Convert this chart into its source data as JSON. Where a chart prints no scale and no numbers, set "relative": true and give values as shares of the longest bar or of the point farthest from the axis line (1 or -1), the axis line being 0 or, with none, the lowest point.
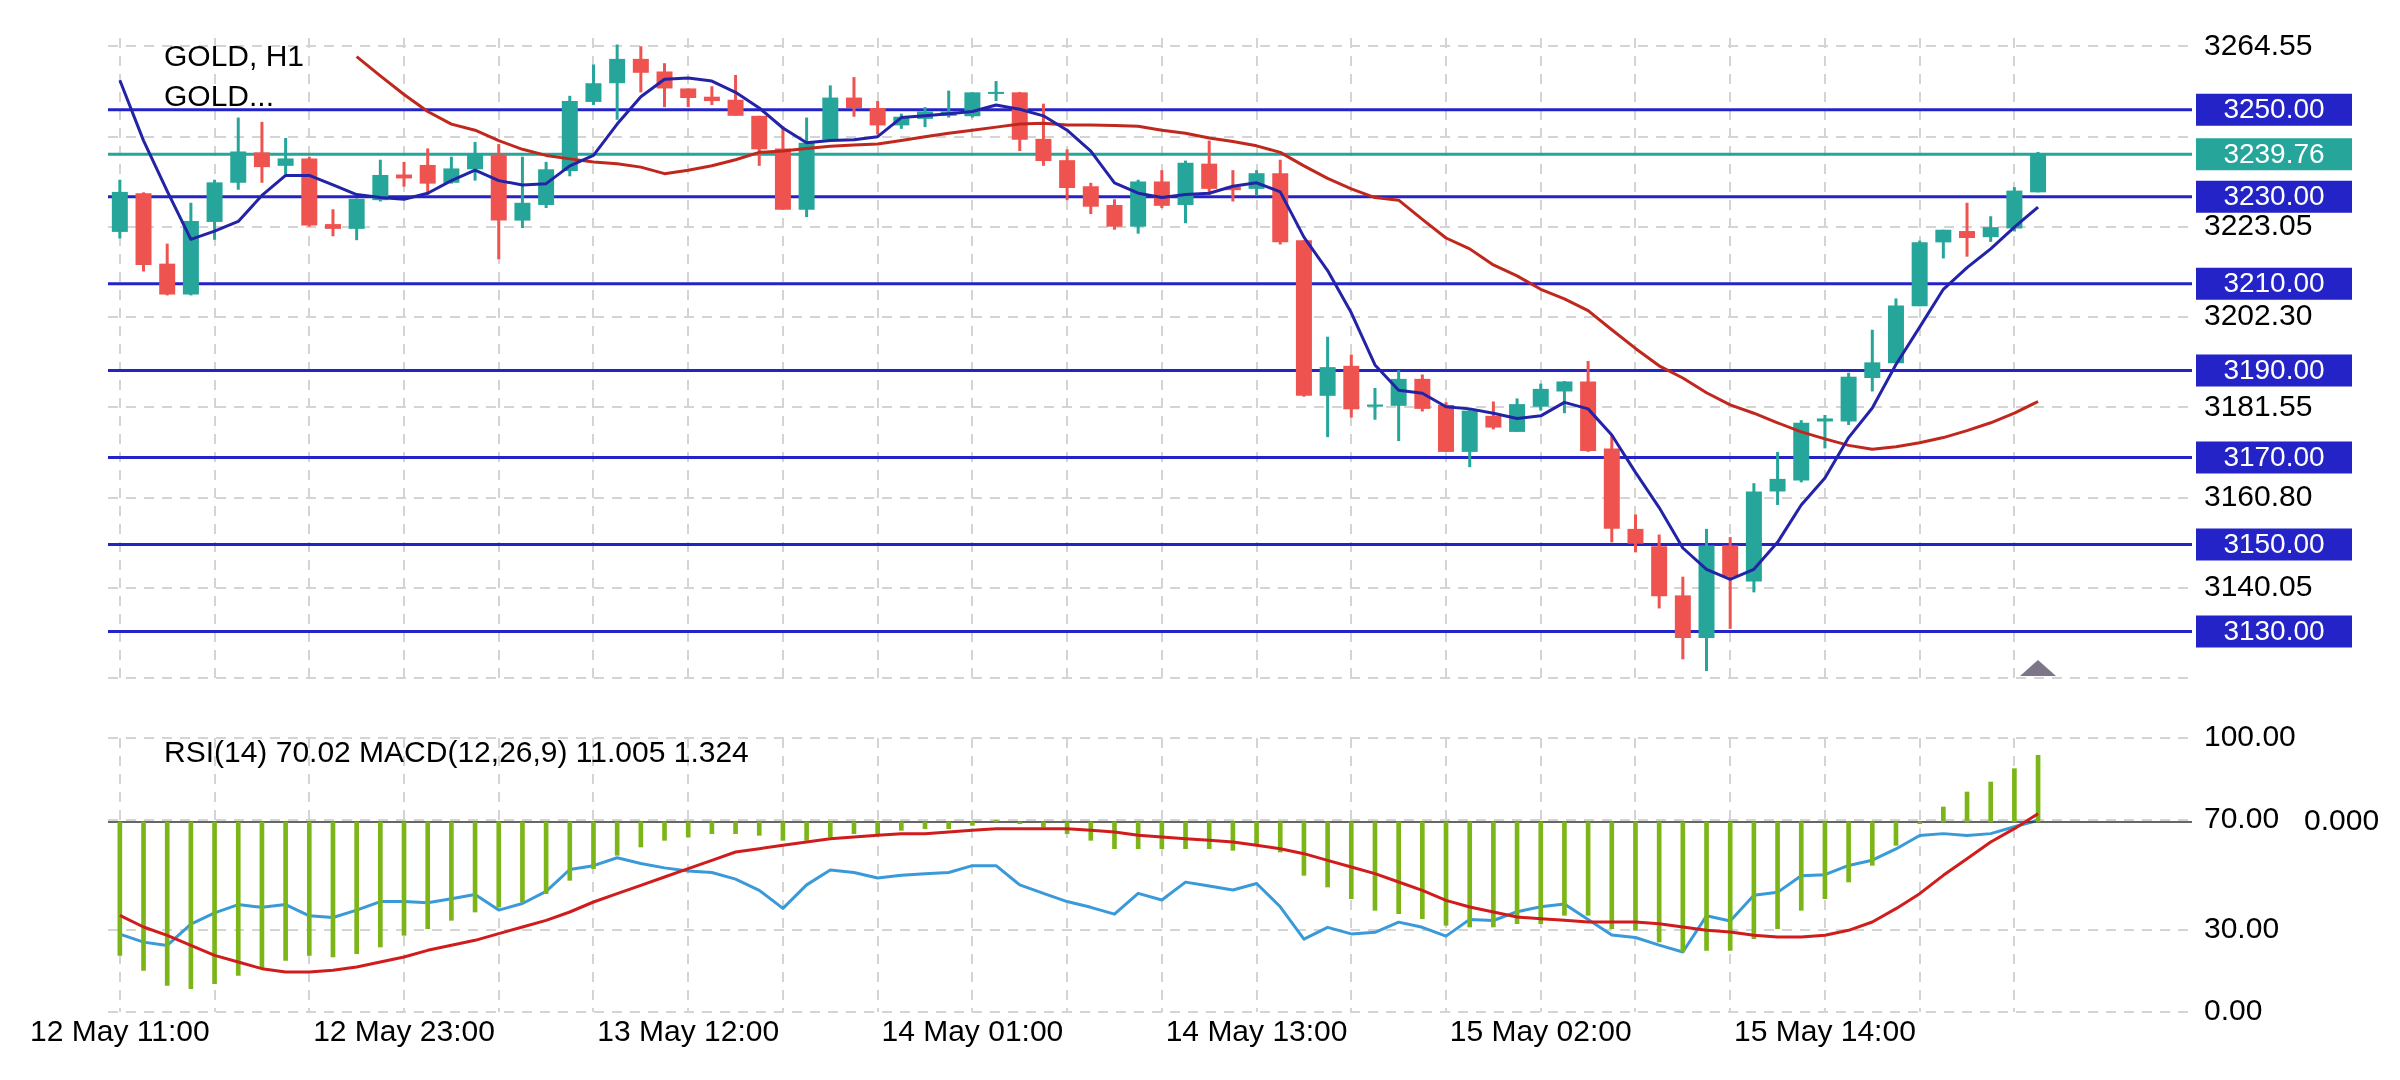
{
  "chart_data": [
    {
      "type": "candlestick",
      "title": "GOLD, H1",
      "subtitle": "GOLD...",
      "grid": true,
      "categories": [
        null,
        null,
        null,
        null,
        null,
        null,
        null,
        null,
        null,
        null,
        null,
        null,
        null,
        null,
        null,
        null,
        null,
        null,
        null,
        null,
        null,
        null,
        null,
        null,
        null,
        null,
        null,
        null,
        null,
        null,
        null,
        null,
        null,
        null,
        null,
        null,
        null,
        null,
        null,
        null,
        null,
        null,
        null,
        null,
        null,
        null,
        null,
        null,
        null,
        null,
        null,
        null,
        null,
        null,
        null,
        null,
        null,
        null,
        null,
        null,
        null,
        null,
        null,
        null,
        null,
        null,
        null,
        null,
        null,
        null,
        null,
        null,
        null,
        null,
        null,
        null,
        null,
        null,
        null,
        null,
        null,
        null
      ],
      "ohlc": [
        [
          3221.9,
          3233.9,
          3220.4,
          3231.1
        ],
        [
          3230.8,
          3231.0,
          3212.8,
          3214.3
        ],
        [
          3214.6,
          3219.2,
          3207.3,
          3207.5
        ],
        [
          3207.5,
          3228.6,
          3207.3,
          3224.4
        ],
        [
          3224.2,
          3233.9,
          3220.1,
          3233.3
        ],
        [
          3233.2,
          3248.2,
          3231.6,
          3240.4
        ],
        [
          3240.2,
          3247.2,
          3233.2,
          3236.8
        ],
        [
          3237.1,
          3243.5,
          3235.1,
          3238.8
        ],
        [
          3238.8,
          3239.2,
          3223.1,
          3223.4
        ],
        [
          3223.7,
          3227.1,
          3220.9,
          3222.6
        ],
        [
          3222.6,
          3229.6,
          3220.0,
          3229.5
        ],
        [
          3229.2,
          3238.5,
          3228.9,
          3235.0
        ],
        [
          3235.1,
          3238.0,
          3232.3,
          3234.2
        ],
        [
          3237.3,
          3241.1,
          3230.3,
          3233.0
        ],
        [
          3233.2,
          3239.2,
          3233.0,
          3236.5
        ],
        [
          3236.3,
          3242.6,
          3233.7,
          3239.7
        ],
        [
          3239.7,
          3242.1,
          3215.6,
          3224.5
        ],
        [
          3224.5,
          3239.2,
          3222.8,
          3228.6
        ],
        [
          3228.1,
          3238.0,
          3227.4,
          3236.3
        ],
        [
          3235.9,
          3253.2,
          3234.7,
          3252.0
        ],
        [
          3251.8,
          3260.4,
          3251.1,
          3256.1
        ],
        [
          3256.1,
          3265.0,
          3247.7,
          3261.7
        ],
        [
          3261.7,
          3264.6,
          3254.0,
          3258.5
        ],
        [
          3258.8,
          3260.7,
          3250.6,
          3254.9
        ],
        [
          3254.9,
          3254.9,
          3250.6,
          3252.7
        ],
        [
          3253.0,
          3255.4,
          3251.1,
          3252.0
        ],
        [
          3252.3,
          3258.0,
          3248.6,
          3248.6
        ],
        [
          3248.6,
          3248.6,
          3237.1,
          3240.9
        ],
        [
          3241.1,
          3246.2,
          3227.0,
          3227.0
        ],
        [
          3227.0,
          3248.2,
          3225.3,
          3242.4
        ],
        [
          3243.1,
          3255.6,
          3242.9,
          3252.8
        ],
        [
          3252.8,
          3257.5,
          3248.4,
          3250.4
        ],
        [
          3250.4,
          3252.0,
          3244.3,
          3246.4
        ],
        [
          3246.4,
          3249.1,
          3245.6,
          3248.4
        ],
        [
          3247.9,
          3250.6,
          3246.0,
          3249.6
        ],
        [
          3248.6,
          3254.4,
          3248.2,
          3249.6
        ],
        [
          3248.5,
          3254.0,
          3248.2,
          3254.0
        ],
        [
          3253.8,
          3256.6,
          3252.0,
          3254.1
        ],
        [
          3254.0,
          3254.1,
          3240.5,
          3243.1
        ],
        [
          3243.3,
          3251.4,
          3237.1,
          3238.2
        ],
        [
          3238.4,
          3240.9,
          3229.2,
          3232.0
        ],
        [
          3232.4,
          3233.2,
          3226.0,
          3227.7
        ],
        [
          3228.1,
          3229.4,
          3222.4,
          3223.1
        ],
        [
          3223.1,
          3233.9,
          3221.5,
          3233.5
        ],
        [
          3233.5,
          3236.1,
          3227.4,
          3227.9
        ],
        [
          3228.1,
          3238.3,
          3223.9,
          3237.8
        ],
        [
          3237.6,
          3242.9,
          3230.3,
          3231.8
        ],
        [
          3232.3,
          3236.1,
          3228.9,
          3231.5
        ],
        [
          3231.8,
          3236.1,
          3230.3,
          3235.4
        ],
        [
          3235.4,
          3238.5,
          3219.0,
          3219.5
        ],
        [
          3220.0,
          3220.0,
          3184.0,
          3184.2
        ],
        [
          3184.2,
          3197.8,
          3174.7,
          3190.8
        ],
        [
          3191.1,
          3193.7,
          3179.2,
          3181.1
        ],
        [
          3181.7,
          3186.0,
          3178.7,
          3182.2
        ],
        [
          3181.9,
          3190.1,
          3173.8,
          3188.1
        ],
        [
          3188.1,
          3189.1,
          3180.6,
          3181.2
        ],
        [
          3182.1,
          3182.7,
          3171.3,
          3171.3
        ],
        [
          3171.3,
          3181.4,
          3167.8,
          3180.8
        ],
        [
          3179.6,
          3182.9,
          3176.5,
          3176.9
        ],
        [
          3175.9,
          3183.6,
          3175.9,
          3182.3
        ],
        [
          3181.7,
          3187.0,
          3180.8,
          3185.8
        ],
        [
          3185.2,
          3187.6,
          3180.2,
          3187.5
        ],
        [
          3187.5,
          3192.2,
          3171.3,
          3171.5
        ],
        [
          3172.1,
          3175.2,
          3150.5,
          3153.6
        ],
        [
          3153.6,
          3156.9,
          3148.2,
          3150.2
        ],
        [
          3149.6,
          3152.3,
          3135.3,
          3138.1
        ],
        [
          3138.3,
          3142.6,
          3123.6,
          3128.5
        ],
        [
          3128.5,
          3153.6,
          3120.9,
          3149.8
        ],
        [
          3149.8,
          3151.7,
          3130.6,
          3142.6
        ],
        [
          3141.5,
          3164.1,
          3139.0,
          3162.2
        ],
        [
          3162.2,
          3171.3,
          3159.1,
          3165.1
        ],
        [
          3164.7,
          3178.6,
          3164.3,
          3178.0
        ],
        [
          3178.3,
          3179.8,
          3172.1,
          3179.0
        ],
        [
          3178.3,
          3189.5,
          3177.5,
          3188.6
        ],
        [
          3188.3,
          3199.4,
          3185.2,
          3191.9
        ],
        [
          3191.7,
          3206.6,
          3191.7,
          3205.0
        ],
        [
          3204.8,
          3219.9,
          3204.8,
          3219.5
        ],
        [
          3219.5,
          3222.4,
          3215.8,
          3222.4
        ],
        [
          3222.1,
          3228.6,
          3216.2,
          3220.5
        ],
        [
          3220.7,
          3225.5,
          3219.6,
          3223.0
        ],
        [
          3222.7,
          3232.2,
          3222.0,
          3231.4
        ],
        [
          3231.0,
          3240.3,
          3231.0,
          3239.76
        ]
      ],
      "colors": [
        "#26a69a",
        "#ef5350",
        "#ef5350",
        "#26a69a",
        "#26a69a",
        "#26a69a",
        "#ef5350",
        "#26a69a",
        "#ef5350",
        "#ef5350",
        "#26a69a",
        "#26a69a",
        "#ef5350",
        "#ef5350",
        "#26a69a",
        "#26a69a",
        "#ef5350",
        "#26a69a",
        "#26a69a",
        "#26a69a",
        "#26a69a",
        "#26a69a",
        "#ef5350",
        "#ef5350",
        "#ef5350",
        "#ef5350",
        "#ef5350",
        "#ef5350",
        "#ef5350",
        "#26a69a",
        "#26a69a",
        "#ef5350",
        "#ef5350",
        "#26a69a",
        "#26a69a",
        "#26a69a",
        "#26a69a",
        "#26a69a",
        "#ef5350",
        "#ef5350",
        "#ef5350",
        "#ef5350",
        "#ef5350",
        "#26a69a",
        "#ef5350",
        "#26a69a",
        "#ef5350",
        "#ef5350",
        "#26a69a",
        "#ef5350",
        "#ef5350",
        "#26a69a",
        "#ef5350",
        "#26a69a",
        "#26a69a",
        "#ef5350",
        "#ef5350",
        "#26a69a",
        "#ef5350",
        "#26a69a",
        "#26a69a",
        "#26a69a",
        "#ef5350",
        "#ef5350",
        "#ef5350",
        "#ef5350",
        "#ef5350",
        "#26a69a",
        "#ef5350",
        "#26a69a",
        "#26a69a",
        "#26a69a",
        "#26a69a",
        "#26a69a",
        "#26a69a",
        "#26a69a",
        "#26a69a",
        "#26a69a",
        "#ef5350",
        "#26a69a",
        "#26a69a",
        "#26a69a"
      ],
      "series": [
        {
          "type": "line",
          "color": "#2323a8",
          "values": [
            3256.8,
            3242.9,
            3231.3,
            3220.2,
            3222.1,
            3224.3,
            3230.3,
            3234.9,
            3234.9,
            3232.7,
            3230.5,
            3229.8,
            3229.4,
            3230.8,
            3233.7,
            3236.1,
            3233.7,
            3232.7,
            3233.0,
            3237.1,
            3239.5,
            3246.7,
            3253.0,
            3257.0,
            3257.3,
            3256.6,
            3254.0,
            3250.4,
            3245.8,
            3242.4,
            3242.9,
            3243.1,
            3243.8,
            3248.2,
            3248.6,
            3249.1,
            3249.6,
            3251.1,
            3250.1,
            3248.6,
            3245.3,
            3240.5,
            3233.2,
            3230.8,
            3229.8,
            3230.5,
            3230.8,
            3232.4,
            3233.2,
            3231.1,
            3220.7,
            3213.0,
            3203.3,
            3191.3,
            3185.5,
            3184.8,
            3181.7,
            3181.2,
            3180.2,
            3179.0,
            3179.6,
            3182.7,
            3181.2,
            3175.2,
            3166.6,
            3158.5,
            3149.2,
            3144.3,
            3142.0,
            3144.3,
            3150.5,
            3159.1,
            3165.3,
            3174.6,
            3181.4,
            3191.4,
            3200.0,
            3208.7,
            3213.7,
            3218.0,
            3223.0,
            3227.6
          ]
        },
        {
          "type": "line",
          "color": "#c0281e",
          "values": [
            null,
            null,
            null,
            null,
            null,
            null,
            null,
            null,
            null,
            null,
            3262.2,
            3257.8,
            3253.5,
            3249.6,
            3246.7,
            3245.3,
            3242.9,
            3240.9,
            3239.5,
            3238.7,
            3238.0,
            3237.6,
            3236.8,
            3235.3,
            3236.1,
            3237.1,
            3238.5,
            3240.2,
            3240.5,
            3241.1,
            3241.6,
            3241.9,
            3242.1,
            3242.9,
            3243.8,
            3244.6,
            3245.3,
            3246.0,
            3246.7,
            3246.9,
            3246.5,
            3246.5,
            3246.4,
            3246.2,
            3245.3,
            3244.6,
            3243.5,
            3242.7,
            3241.7,
            3240.2,
            3237.1,
            3234.2,
            3231.8,
            3229.8,
            3229.2,
            3224.8,
            3220.5,
            3218.0,
            3214.3,
            3211.8,
            3208.7,
            3206.5,
            3203.8,
            3199.4,
            3195.1,
            3191.1,
            3188.3,
            3184.9,
            3182.1,
            3180.2,
            3178.0,
            3175.9,
            3174.3,
            3172.8,
            3171.9,
            3172.5,
            3173.4,
            3174.6,
            3176.2,
            3178.0,
            3180.2,
            3182.9
          ]
        }
      ],
      "ylim": [
        3119.3,
        3266.5
      ],
      "yticks": [
        {
          "value": 3264.55,
          "label": "3264.55"
        },
        {
          "value": 3243.8,
          "label": null
        },
        {
          "value": 3223.05,
          "label": "3223.05"
        },
        {
          "value": 3202.3,
          "label": "3202.30"
        },
        {
          "value": 3181.55,
          "label": "3181.55"
        },
        {
          "value": 3160.8,
          "label": "3160.80"
        },
        {
          "value": 3140.05,
          "label": "3140.05"
        },
        {
          "value": 3119.3,
          "label": null
        }
      ],
      "ref_lines": [
        {
          "axis": "y",
          "value": 3250,
          "label": "3250.00",
          "color": "#2323c8"
        },
        {
          "axis": "y",
          "value": 3239.76,
          "label": "3239.76",
          "color": "#26a69a"
        },
        {
          "axis": "y",
          "value": 3230,
          "label": "3230.00",
          "color": "#2323c8"
        },
        {
          "axis": "y",
          "value": 3210,
          "label": "3210.00",
          "color": "#2323c8"
        },
        {
          "axis": "y",
          "value": 3190,
          "label": "3190.00",
          "color": "#2323c8"
        },
        {
          "axis": "y",
          "value": 3170,
          "label": "3170.00",
          "color": "#2323c8"
        },
        {
          "axis": "y",
          "value": 3150,
          "label": "3150.00",
          "color": "#2323c8"
        },
        {
          "axis": "y",
          "value": 3130,
          "label": "3130.00",
          "color": "#2323c8"
        }
      ]
    },
    {
      "type": "line",
      "title": "RSI(14) 70.02 MACD(12,26,9) 11.005 1.324",
      "grid": true,
      "categories": [
        "12 May 11:00",
        null,
        null,
        null,
        null,
        null,
        null,
        null,
        null,
        null,
        null,
        null,
        "12 May 23:00",
        null,
        null,
        null,
        null,
        null,
        null,
        null,
        null,
        null,
        null,
        null,
        "13 May 12:00",
        null,
        null,
        null,
        null,
        null,
        null,
        null,
        null,
        null,
        null,
        null,
        "14 May 01:00",
        null,
        null,
        null,
        null,
        null,
        null,
        null,
        null,
        null,
        null,
        null,
        "14 May 13:00",
        null,
        null,
        null,
        null,
        null,
        null,
        null,
        null,
        null,
        null,
        null,
        "15 May 02:00",
        null,
        null,
        null,
        null,
        null,
        null,
        null,
        null,
        null,
        null,
        null,
        "15 May 14:00",
        null,
        null,
        null,
        null,
        null,
        null,
        null,
        null,
        null
      ],
      "series": [
        {
          "color": "#3a9ad9",
          "values": [
            28.4,
            25.5,
            24.3,
            32.1,
            36.2,
            39.2,
            38.2,
            39.2,
            35.1,
            34.5,
            37.2,
            40.3,
            40.3,
            39.9,
            41.3,
            42.9,
            37.2,
            39.6,
            44.0,
            52.0,
            53.4,
            56.3,
            54.2,
            52.6,
            51.5,
            50.9,
            48.5,
            44.4,
            37.8,
            46.4,
            51.8,
            50.9,
            48.9,
            49.9,
            50.5,
            50.9,
            53.4,
            53.4,
            46.4,
            43.3,
            40.3,
            38.2,
            35.7,
            43.3,
            40.9,
            47.4,
            46.0,
            44.5,
            46.9,
            38.4,
            26.6,
            30.9,
            28.5,
            29.1,
            32.8,
            30.9,
            27.7,
            33.8,
            33.4,
            36.6,
            38.4,
            39.4,
            33.8,
            28.1,
            27.2,
            24.4,
            21.9,
            35.1,
            33.2,
            42.6,
            43.7,
            49.7,
            50.1,
            53.5,
            55.4,
            59.5,
            64.4,
            65.1,
            64.4,
            65.1,
            67.6,
            70.0
          ]
        }
      ],
      "ylim": [
        0,
        100
      ],
      "yticks": [
        {
          "value": 0,
          "label": "0.00"
        },
        {
          "value": 30,
          "label": "30.00"
        },
        {
          "value": 70,
          "label": "70.00"
        },
        {
          "value": 100,
          "label": "100.00"
        }
      ]
    },
    {
      "type": "bar",
      "relative": true,
      "annotations": [
        "0.000"
      ],
      "categories": [
        null,
        null,
        null,
        null,
        null,
        null,
        null,
        null,
        null,
        null,
        null,
        null,
        null,
        null,
        null,
        null,
        null,
        null,
        null,
        null,
        null,
        null,
        null,
        null,
        null,
        null,
        null,
        null,
        null,
        null,
        null,
        null,
        null,
        null,
        null,
        null,
        null,
        null,
        null,
        null,
        null,
        null,
        null,
        null,
        null,
        null,
        null,
        null,
        null,
        null,
        null,
        null,
        null,
        null,
        null,
        null,
        null,
        null,
        null,
        null,
        null,
        null,
        null,
        null,
        null,
        null,
        null,
        null,
        null,
        null,
        null,
        null,
        null,
        null,
        null,
        null,
        null,
        null,
        null,
        null,
        null,
        null
      ],
      "series": [
        {
          "color": "#7cb518",
          "values": [
            -0.8,
            -0.89,
            -0.98,
            -1,
            -0.97,
            -0.92,
            -0.88,
            -0.83,
            -0.8,
            -0.81,
            -0.79,
            -0.75,
            -0.68,
            -0.64,
            -0.59,
            -0.54,
            -0.51,
            -0.48,
            -0.43,
            -0.35,
            -0.28,
            -0.2,
            -0.15,
            -0.11,
            -0.09,
            -0.07,
            -0.07,
            -0.08,
            -0.11,
            -0.11,
            -0.09,
            -0.07,
            -0.07,
            -0.05,
            -0.04,
            -0.04,
            -0.02,
            0.01,
            -0.01,
            -0.03,
            -0.07,
            -0.11,
            -0.16,
            -0.16,
            -0.16,
            -0.16,
            -0.16,
            -0.17,
            -0.13,
            -0.18,
            -0.32,
            -0.39,
            -0.46,
            -0.53,
            -0.55,
            -0.58,
            -0.62,
            -0.63,
            -0.63,
            -0.61,
            -0.61,
            -0.56,
            -0.56,
            -0.64,
            -0.65,
            -0.72,
            -0.78,
            -0.77,
            -0.77,
            -0.7,
            -0.64,
            -0.53,
            -0.46,
            -0.36,
            -0.26,
            -0.14,
            -0.01,
            0.09,
            0.18,
            0.24,
            0.32,
            0.4
          ]
        },
        {
          "type": "line",
          "color": "#d01c1c",
          "values": [
            -0.56,
            -0.63,
            -0.68,
            -0.74,
            -0.8,
            -0.84,
            -0.88,
            -0.9,
            -0.9,
            -0.89,
            -0.87,
            -0.84,
            -0.81,
            -0.77,
            -0.74,
            -0.71,
            -0.67,
            -0.63,
            -0.59,
            -0.54,
            -0.48,
            -0.43,
            -0.38,
            -0.33,
            -0.28,
            -0.23,
            -0.18,
            -0.16,
            -0.14,
            -0.12,
            -0.1,
            -0.09,
            -0.08,
            -0.07,
            -0.07,
            -0.06,
            -0.05,
            -0.04,
            -0.04,
            -0.04,
            -0.04,
            -0.05,
            -0.06,
            -0.08,
            -0.09,
            -0.1,
            -0.11,
            -0.12,
            -0.14,
            -0.16,
            -0.19,
            -0.23,
            -0.27,
            -0.31,
            -0.36,
            -0.41,
            -0.47,
            -0.51,
            -0.54,
            -0.57,
            -0.58,
            -0.59,
            -0.6,
            -0.6,
            -0.6,
            -0.61,
            -0.63,
            -0.65,
            -0.66,
            -0.68,
            -0.69,
            -0.69,
            -0.68,
            -0.65,
            -0.6,
            -0.52,
            -0.43,
            -0.32,
            -0.22,
            -0.12,
            -0.04,
            0.05
          ]
        }
      ]
    }
  ]
}
